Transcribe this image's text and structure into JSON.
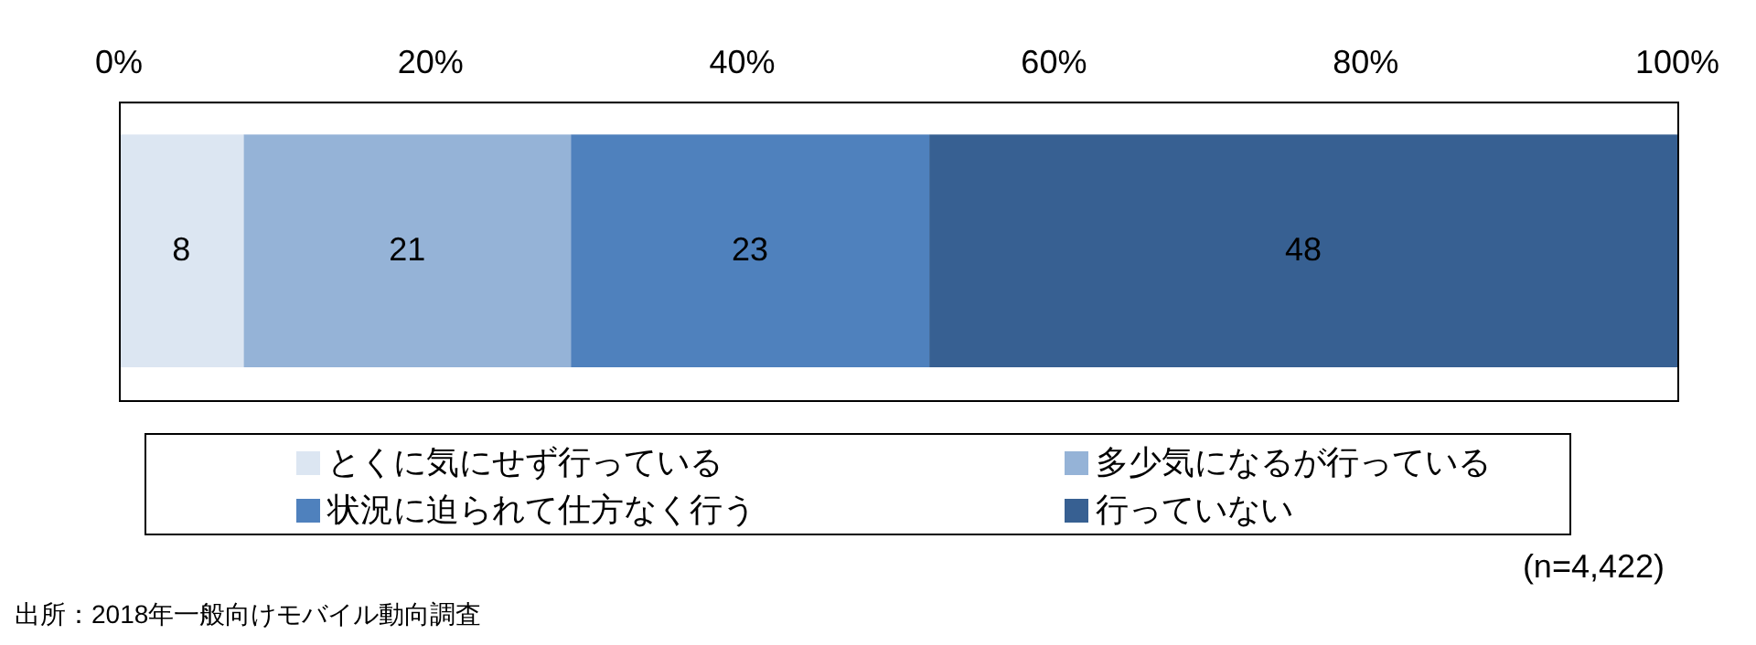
{
  "chart_data": {
    "type": "bar",
    "orientation": "horizontal",
    "stacked": true,
    "categories": [
      null
    ],
    "series": [
      {
        "name": "とくに気にせず行っている",
        "color": "#dce6f2",
        "values": [
          8
        ]
      },
      {
        "name": "多少気になるが行っている",
        "color": "#95b3d7",
        "values": [
          21
        ]
      },
      {
        "name": "状況に迫られて仕方なく行う",
        "color": "#4f81bd",
        "values": [
          23
        ]
      },
      {
        "name": "行っていない",
        "color": "#376092",
        "values": [
          48
        ]
      }
    ],
    "xlim": [
      0,
      100
    ],
    "xticks": [
      {
        "value": 0,
        "label": "0%"
      },
      {
        "value": 20,
        "label": "20%"
      },
      {
        "value": 40,
        "label": "40%"
      },
      {
        "value": 60,
        "label": "60%"
      },
      {
        "value": 80,
        "label": "80%"
      },
      {
        "value": 100,
        "label": "100%"
      }
    ],
    "grid": false,
    "legend": "bottom",
    "data_labels": true,
    "annotations": [
      "(n=4,422)",
      "出所：2018年一般向けモバイル動向調査"
    ]
  }
}
